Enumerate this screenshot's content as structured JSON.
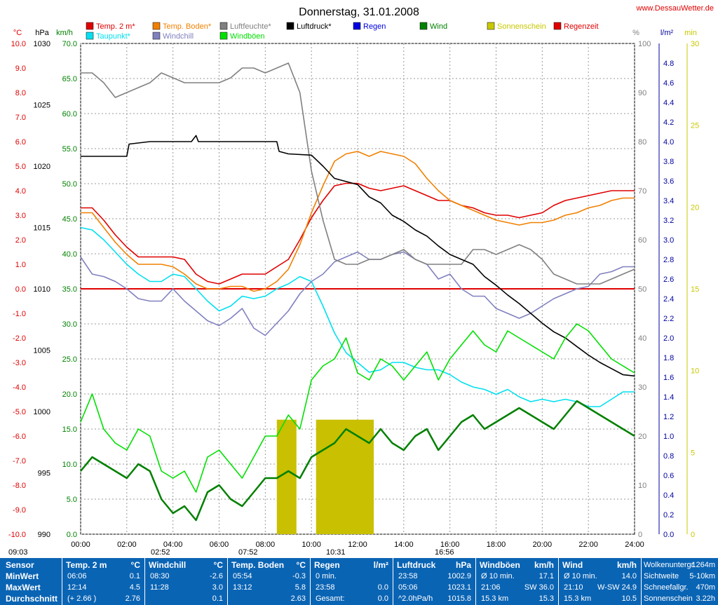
{
  "header": {
    "title": "Donnerstag, 31.01.2008",
    "site": "www.DessauWetter.de"
  },
  "legend": [
    {
      "label": "Temp. 2 m*",
      "color": "#e00000"
    },
    {
      "label": "Temp. Boden*",
      "color": "#f08000"
    },
    {
      "label": "Luftfeuchte*",
      "color": "#808080"
    },
    {
      "label": "Luftdruck*",
      "color": "#000000"
    },
    {
      "label": "Regen",
      "color": "#0000e0"
    },
    {
      "label": "Wind",
      "color": "#008000"
    },
    {
      "label": "Sonnenschein",
      "color": "#c8c800"
    },
    {
      "label": "Regenzeit",
      "color": "#e00000"
    },
    {
      "label": "Taupunkt*",
      "color": "#00e0f0"
    },
    {
      "label": "Windchill",
      "color": "#8080c0"
    },
    {
      "label": "Windböen",
      "color": "#00e000"
    }
  ],
  "axis_units": {
    "temp": "°C",
    "pressure": "hPa",
    "wind": "km/h",
    "humidity": "%",
    "rain": "l/m²",
    "sun": "min"
  },
  "chart_data": {
    "type": "line",
    "x_range": [
      0,
      24
    ],
    "x_ticks": [
      "00:00",
      "02:00",
      "04:00",
      "06:00",
      "08:00",
      "10:00",
      "12:00",
      "14:00",
      "16:00",
      "18:00",
      "20:00",
      "22:00",
      "24:00"
    ],
    "axes": {
      "temp": {
        "range": [
          -10,
          10
        ],
        "ticks": [
          "-10.0",
          "-9.0",
          "-8.0",
          "-7.0",
          "-6.0",
          "-5.0",
          "-4.0",
          "-3.0",
          "-2.0",
          "-1.0",
          "0.0",
          "1.0",
          "2.0",
          "3.0",
          "4.0",
          "5.0",
          "6.0",
          "7.0",
          "8.0",
          "9.0",
          "10.0"
        ],
        "color": "#e00000"
      },
      "pressure": {
        "range": [
          990,
          1030
        ],
        "ticks": [
          "990",
          "995",
          "1000",
          "1005",
          "1010",
          "1015",
          "1020",
          "1025",
          "1030"
        ],
        "color": "#000000"
      },
      "wind": {
        "range": [
          0,
          70
        ],
        "ticks": [
          "0.0",
          "5.0",
          "10.0",
          "15.0",
          "20.0",
          "25.0",
          "30.0",
          "35.0",
          "40.0",
          "45.0",
          "50.0",
          "55.0",
          "60.0",
          "65.0",
          "70.0"
        ],
        "color": "#008000"
      },
      "humidity": {
        "range": [
          0,
          100
        ],
        "ticks": [
          "0",
          "10",
          "20",
          "30",
          "40",
          "50",
          "60",
          "70",
          "80",
          "90",
          "100"
        ],
        "color": "#808080"
      },
      "rain": {
        "range": [
          0,
          5
        ],
        "ticks": [
          "0.0",
          "0.2",
          "0.4",
          "0.6",
          "0.8",
          "1.0",
          "1.2",
          "1.4",
          "1.6",
          "1.8",
          "2.0",
          "2.2",
          "2.4",
          "2.6",
          "2.8",
          "3.0",
          "3.2",
          "3.4",
          "3.6",
          "3.8",
          "4.0",
          "4.2",
          "4.4",
          "4.6",
          "4.8"
        ],
        "color": "#0000a0"
      },
      "sun": {
        "range": [
          0,
          30
        ],
        "ticks": [
          "0",
          "5",
          "10",
          "15",
          "20",
          "25",
          "30"
        ],
        "color": "#c8c800"
      }
    },
    "series": [
      {
        "name": "Temp. 2 m*",
        "axis": "temp",
        "color": "#e00000",
        "x": [
          0,
          0.5,
          1,
          1.5,
          2,
          2.5,
          3,
          3.5,
          4,
          4.5,
          5,
          5.5,
          6,
          6.5,
          7,
          7.5,
          8,
          8.5,
          9,
          9.5,
          10,
          10.5,
          11,
          11.5,
          12,
          12.5,
          13,
          13.5,
          14,
          14.5,
          15,
          15.5,
          16,
          16.5,
          17,
          17.5,
          18,
          18.5,
          19,
          19.5,
          20,
          20.5,
          21,
          21.5,
          22,
          22.5,
          23,
          23.5,
          24
        ],
        "y": [
          3.3,
          3.3,
          2.8,
          2.2,
          1.7,
          1.3,
          1.3,
          1.3,
          1.3,
          1.2,
          0.6,
          0.3,
          0.2,
          0.4,
          0.6,
          0.6,
          0.6,
          0.9,
          1.2,
          2.0,
          2.9,
          3.6,
          4.2,
          4.3,
          4.3,
          4.1,
          4.0,
          4.1,
          4.2,
          4.0,
          3.8,
          3.6,
          3.6,
          3.4,
          3.3,
          3.1,
          3.0,
          3.0,
          2.9,
          3.0,
          3.1,
          3.4,
          3.6,
          3.7,
          3.8,
          3.9,
          4.0,
          4.0,
          4.0
        ]
      },
      {
        "name": "Temp. Boden*",
        "axis": "temp",
        "color": "#f08000",
        "x": [
          0,
          0.5,
          1,
          1.5,
          2,
          2.5,
          3,
          3.5,
          4,
          4.5,
          5,
          5.5,
          6,
          6.5,
          7,
          7.5,
          8,
          8.5,
          9,
          9.5,
          10,
          10.5,
          11,
          11.5,
          12,
          12.5,
          13,
          13.5,
          14,
          14.5,
          15,
          15.5,
          16,
          16.5,
          17,
          17.5,
          18,
          18.5,
          19,
          19.5,
          20,
          20.5,
          21,
          21.5,
          22,
          22.5,
          23,
          23.5,
          24
        ],
        "y": [
          3.1,
          3.1,
          2.5,
          1.9,
          1.4,
          1.0,
          1.0,
          1.0,
          0.9,
          0.6,
          0.2,
          0.0,
          0.0,
          0.1,
          0.1,
          -0.1,
          0.0,
          0.3,
          0.8,
          1.8,
          3.1,
          4.2,
          5.2,
          5.5,
          5.6,
          5.4,
          5.6,
          5.5,
          5.4,
          5.1,
          4.5,
          4.0,
          3.6,
          3.4,
          3.2,
          3.0,
          2.8,
          2.7,
          2.6,
          2.7,
          2.7,
          2.8,
          3.0,
          3.1,
          3.3,
          3.4,
          3.6,
          3.7,
          3.7
        ]
      },
      {
        "name": "Taupunkt*",
        "axis": "temp",
        "color": "#00e0f0",
        "x": [
          0,
          0.5,
          1,
          1.5,
          2,
          2.5,
          3,
          3.5,
          4,
          4.5,
          5,
          5.5,
          6,
          6.5,
          7,
          7.5,
          8,
          8.5,
          9,
          9.5,
          10,
          10.5,
          11,
          11.5,
          12,
          12.5,
          13,
          13.5,
          14,
          14.5,
          15,
          15.5,
          16,
          16.5,
          17,
          17.5,
          18,
          18.5,
          19,
          19.5,
          20,
          20.5,
          21,
          21.5,
          22,
          22.5,
          23,
          23.5,
          24
        ],
        "y": [
          2.5,
          2.4,
          2.0,
          1.5,
          1.0,
          0.6,
          0.3,
          0.3,
          0.6,
          0.5,
          0.0,
          -0.5,
          -0.9,
          -0.7,
          -0.3,
          -0.4,
          -0.3,
          0.0,
          0.2,
          0.5,
          0.3,
          -0.7,
          -1.8,
          -2.6,
          -3.0,
          -3.4,
          -3.3,
          -3.0,
          -3.0,
          -3.2,
          -3.3,
          -3.3,
          -3.5,
          -3.8,
          -4.0,
          -4.1,
          -4.3,
          -4.1,
          -4.4,
          -4.6,
          -4.5,
          -4.6,
          -4.5,
          -4.6,
          -4.8,
          -4.8,
          -4.5,
          -4.2,
          -4.2
        ]
      },
      {
        "name": "Windchill",
        "axis": "temp",
        "color": "#8080c0",
        "x": [
          0,
          0.5,
          1,
          1.5,
          2,
          2.5,
          3,
          3.5,
          4,
          4.5,
          5,
          5.5,
          6,
          6.5,
          7,
          7.5,
          8,
          8.5,
          9,
          9.5,
          10,
          10.5,
          11,
          11.5,
          12,
          12.5,
          13,
          13.5,
          14,
          14.5,
          15,
          15.5,
          16,
          16.5,
          17,
          17.5,
          18,
          18.5,
          19,
          19.5,
          20,
          20.5,
          21,
          21.5,
          22,
          22.5,
          23,
          23.5,
          24
        ],
        "y": [
          1.3,
          0.6,
          0.5,
          0.3,
          0.0,
          -0.4,
          -0.5,
          -0.5,
          0.0,
          -0.5,
          -0.9,
          -1.3,
          -1.5,
          -1.2,
          -0.8,
          -1.6,
          -1.9,
          -1.4,
          -0.9,
          -0.2,
          0.3,
          0.6,
          1.1,
          1.3,
          1.5,
          1.2,
          1.2,
          1.4,
          1.5,
          1.2,
          1.0,
          0.4,
          0.6,
          0.0,
          -0.3,
          -0.3,
          -0.8,
          -1.0,
          -1.2,
          -1.0,
          -0.7,
          -0.4,
          -0.2,
          0.0,
          0.1,
          0.6,
          0.7,
          0.9,
          0.9
        ]
      },
      {
        "name": "Luftfeuchte*",
        "axis": "humidity",
        "color": "#808080",
        "x": [
          0,
          0.5,
          1,
          1.5,
          2,
          2.5,
          3,
          3.5,
          4,
          4.5,
          5,
          5.5,
          6,
          6.5,
          7,
          7.5,
          8,
          8.5,
          9,
          9.5,
          10,
          10.5,
          11,
          11.5,
          12,
          12.5,
          13,
          13.5,
          14,
          14.5,
          15,
          15.5,
          16,
          16.5,
          17,
          17.5,
          18,
          18.5,
          19,
          19.5,
          20,
          20.5,
          21,
          21.5,
          22,
          22.5,
          23,
          23.5,
          24
        ],
        "y": [
          94,
          94,
          92,
          89,
          90,
          91,
          92,
          94,
          93,
          92,
          92,
          92,
          92,
          93,
          95,
          95,
          94,
          95,
          96,
          90,
          74,
          64,
          56,
          55,
          55,
          56,
          56,
          57,
          58,
          56,
          55,
          55,
          55,
          55,
          58,
          58,
          57,
          58,
          59,
          58,
          56,
          53,
          52,
          51,
          51,
          51,
          52,
          53,
          54
        ]
      },
      {
        "name": "Luftdruck*",
        "axis": "pressure",
        "color": "#000000",
        "x": [
          0,
          1,
          2,
          2.1,
          3,
          4,
          4.8,
          5,
          5.1,
          5.5,
          6,
          7,
          8,
          8.5,
          8.6,
          9,
          10,
          10.5,
          11,
          12,
          12.5,
          13,
          13.5,
          14,
          14.5,
          15,
          15.5,
          16,
          16.5,
          17,
          17.5,
          18,
          18.5,
          19,
          19.5,
          20,
          20.5,
          21,
          21.5,
          22,
          22.5,
          23,
          23.5,
          24
        ],
        "y": [
          1020.8,
          1020.8,
          1020.8,
          1021.8,
          1022,
          1022,
          1022,
          1022.5,
          1022,
          1022,
          1022,
          1022,
          1022,
          1022,
          1021.2,
          1021,
          1020.9,
          1020,
          1019,
          1018.5,
          1017.5,
          1017,
          1016,
          1015.5,
          1014.8,
          1014.3,
          1013.5,
          1012.8,
          1012.4,
          1012,
          1011,
          1010.3,
          1009.5,
          1008.8,
          1008,
          1007.2,
          1006.5,
          1006,
          1005.3,
          1004.6,
          1004,
          1003.5,
          1003,
          1002.9
        ]
      },
      {
        "name": "Wind",
        "axis": "wind",
        "color": "#008000",
        "x": [
          0,
          0.5,
          1,
          1.5,
          2,
          2.5,
          3,
          3.5,
          4,
          4.5,
          5,
          5.5,
          6,
          6.5,
          7,
          7.5,
          8,
          8.5,
          9,
          9.5,
          10,
          10.5,
          11,
          11.5,
          12,
          12.5,
          13,
          13.5,
          14,
          14.5,
          15,
          15.5,
          16,
          16.5,
          17,
          17.5,
          18,
          18.5,
          19,
          19.5,
          20,
          20.5,
          21,
          21.5,
          22,
          22.5,
          23,
          23.5,
          24
        ],
        "y": [
          9,
          11,
          10,
          9,
          8,
          10,
          9,
          5,
          3,
          4,
          2,
          6,
          7,
          5,
          4,
          6,
          8,
          8,
          9,
          8,
          11,
          12,
          13,
          15,
          14,
          13,
          15,
          13,
          12,
          14,
          15,
          12,
          14,
          16,
          17,
          15,
          16,
          17,
          18,
          17,
          16,
          15,
          17,
          19,
          18,
          17,
          16,
          15,
          14
        ]
      },
      {
        "name": "Windböen",
        "axis": "wind",
        "color": "#00e000",
        "x": [
          0,
          0.5,
          1,
          1.5,
          2,
          2.5,
          3,
          3.5,
          4,
          4.5,
          5,
          5.5,
          6,
          6.5,
          7,
          7.5,
          8,
          8.5,
          9,
          9.5,
          10,
          10.5,
          11,
          11.5,
          12,
          12.5,
          13,
          13.5,
          14,
          14.5,
          15,
          15.5,
          16,
          16.5,
          17,
          17.5,
          18,
          18.5,
          19,
          19.5,
          20,
          20.5,
          21,
          21.5,
          22,
          22.5,
          23,
          23.5,
          24
        ],
        "y": [
          16,
          20,
          15,
          13,
          12,
          15,
          14,
          9,
          8,
          9,
          6,
          11,
          12,
          10,
          8,
          11,
          14,
          14,
          17,
          15,
          22,
          24,
          25,
          28,
          23,
          22,
          25,
          24,
          22,
          24,
          26,
          22,
          25,
          27,
          29,
          27,
          26,
          29,
          28,
          27,
          26,
          25,
          28,
          30,
          29,
          27,
          25,
          24,
          23
        ]
      }
    ],
    "sunshine_blocks": [
      {
        "start": 8.5,
        "end": 9.35,
        "minutes": 7
      },
      {
        "start": 10.2,
        "end": 12.7,
        "minutes": 7
      }
    ],
    "reference_line": {
      "axis": "temp",
      "value": 0.0,
      "color": "#e00000"
    },
    "time_markers": [
      {
        "label": "09:03",
        "x_label": true
      },
      {
        "label": "02:52"
      },
      {
        "label": "07:52"
      },
      {
        "label": "10:31"
      },
      {
        "label": "16:56"
      }
    ]
  },
  "summary": {
    "sensor": {
      "header": "Sensor",
      "rows": [
        "MinWert",
        "MaxWert",
        "Durchschnitt"
      ]
    },
    "temp2m": {
      "header": "Temp. 2 m",
      "unit": "°C",
      "rows": [
        [
          "06:06",
          "0.1"
        ],
        [
          "12:14",
          "4.5"
        ],
        [
          "(+ 2.66 )",
          "2.76"
        ]
      ]
    },
    "windchill": {
      "header": "Windchill",
      "unit": "°C",
      "rows": [
        [
          "08:30",
          "-2.6"
        ],
        [
          "11:28",
          "3.0"
        ],
        [
          "",
          "0.1"
        ]
      ]
    },
    "tempBoden": {
      "header": "Temp. Boden",
      "unit": "°C",
      "rows": [
        [
          "05:54",
          "-0.3"
        ],
        [
          "13:12",
          "5.8"
        ],
        [
          "",
          "2.63"
        ]
      ]
    },
    "regen": {
      "header": "Regen",
      "unit": "l/m²",
      "rows": [
        [
          "0 min.",
          ""
        ],
        [
          "23:58",
          "0.0"
        ],
        [
          "Gesamt:",
          "0.0"
        ]
      ]
    },
    "luftdruck": {
      "header": "Luftdruck",
      "unit": "hPa",
      "rows": [
        [
          "23:58",
          "1002.9"
        ],
        [
          "05:06",
          "1023.1"
        ],
        [
          "^2.0hPa/h",
          "1015.8"
        ]
      ]
    },
    "windboeen": {
      "header": "Windböen",
      "unit": "km/h",
      "rows": [
        [
          "Ø 10 min.",
          "17.1"
        ],
        [
          "21:06",
          "SW 36.0"
        ],
        [
          "15.3 km",
          "15.3"
        ]
      ]
    },
    "wind": {
      "header": "Wind",
      "unit": "km/h",
      "rows": [
        [
          "Ø 10 min.",
          "14.0"
        ],
        [
          "21:10",
          "W-SW 24.9"
        ],
        [
          "15.3 km",
          "10.5"
        ]
      ]
    },
    "extra": {
      "rows": [
        [
          "Wolkenuntergr.",
          "1264m"
        ],
        [
          "Sichtweite",
          "5-10km"
        ],
        [
          "Schneefallgr.",
          "470m"
        ],
        [
          "Sonnenschein",
          "3.22h"
        ]
      ]
    }
  }
}
